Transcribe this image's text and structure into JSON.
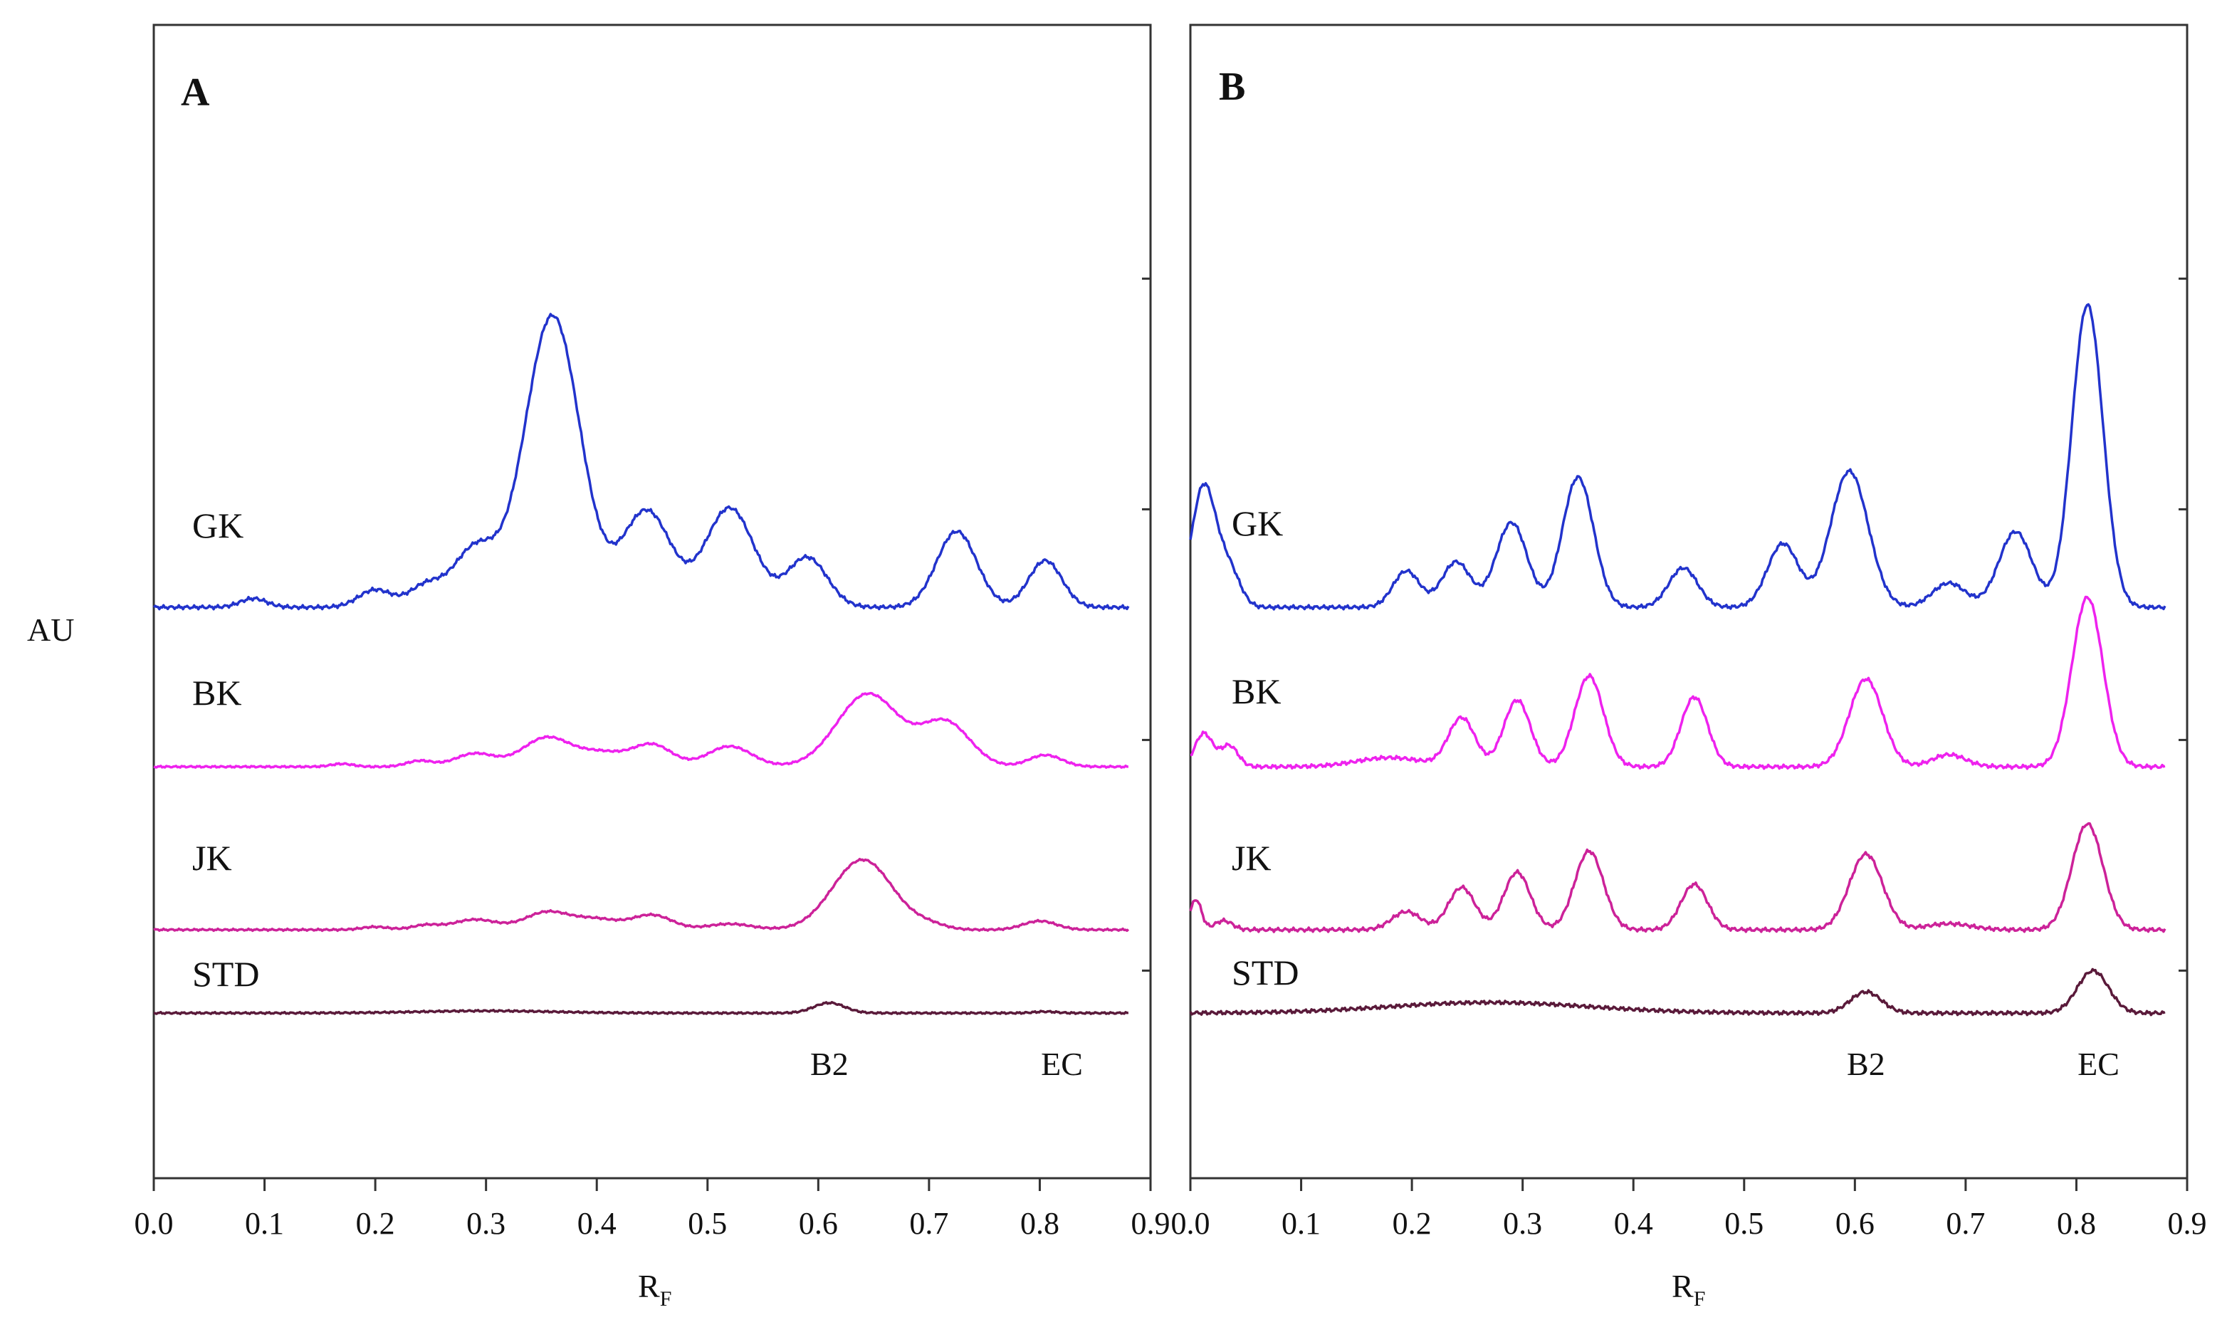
{
  "chart_data": {
    "type": "line",
    "ylabel": "AU",
    "xlabel_main": "R",
    "xlabel_sub": "F",
    "xlim": [
      0.0,
      0.9
    ],
    "x_ticks": [
      "0.0",
      "0.1",
      "0.2",
      "0.3",
      "0.4",
      "0.5",
      "0.6",
      "0.7",
      "0.8",
      "0.9"
    ],
    "colors": {
      "GK": "#2233cc",
      "BK": "#ee22ee",
      "JK": "#cc2299",
      "STD": "#5a1a3a"
    },
    "panels": [
      {
        "letter": "A",
        "peak_labels": [
          {
            "text": "B2",
            "x": 0.61
          },
          {
            "text": "EC",
            "x": 0.82
          }
        ],
        "traces": [
          {
            "name": "GK",
            "baseline": 0.0,
            "peaks": [
              [
                0.09,
                0.03,
                0.012
              ],
              [
                0.2,
                0.06,
                0.015
              ],
              [
                0.245,
                0.07,
                0.015
              ],
              [
                0.29,
                0.2,
                0.02
              ],
              [
                0.36,
                1.0,
                0.025
              ],
              [
                0.445,
                0.33,
                0.022
              ],
              [
                0.52,
                0.34,
                0.022
              ],
              [
                0.59,
                0.17,
                0.018
              ],
              [
                0.725,
                0.26,
                0.018
              ],
              [
                0.805,
                0.16,
                0.015
              ]
            ]
          },
          {
            "name": "BK",
            "baseline": 0.0,
            "peaks": [
              [
                0.17,
                0.02,
                0.01
              ],
              [
                0.24,
                0.04,
                0.012
              ],
              [
                0.29,
                0.09,
                0.018
              ],
              [
                0.355,
                0.2,
                0.022
              ],
              [
                0.405,
                0.09,
                0.02
              ],
              [
                0.45,
                0.15,
                0.018
              ],
              [
                0.52,
                0.14,
                0.02
              ],
              [
                0.645,
                0.5,
                0.028
              ],
              [
                0.715,
                0.3,
                0.022
              ],
              [
                0.805,
                0.08,
                0.015
              ]
            ]
          },
          {
            "name": "JK",
            "baseline": 0.0,
            "peaks": [
              [
                0.2,
                0.02,
                0.012
              ],
              [
                0.245,
                0.03,
                0.012
              ],
              [
                0.29,
                0.07,
                0.02
              ],
              [
                0.355,
                0.12,
                0.02
              ],
              [
                0.4,
                0.07,
                0.02
              ],
              [
                0.45,
                0.1,
                0.018
              ],
              [
                0.52,
                0.04,
                0.02
              ],
              [
                0.64,
                0.48,
                0.027
              ],
              [
                0.7,
                0.03,
                0.015
              ],
              [
                0.8,
                0.06,
                0.015
              ]
            ]
          },
          {
            "name": "STD",
            "baseline": 0.0,
            "peaks": [
              [
                0.3,
                0.015,
                0.06
              ],
              [
                0.61,
                0.07,
                0.014
              ],
              [
                0.805,
                0.01,
                0.01
              ]
            ]
          }
        ]
      },
      {
        "letter": "B",
        "peak_labels": [
          {
            "text": "B2",
            "x": 0.61
          },
          {
            "text": "EC",
            "x": 0.82
          }
        ],
        "traces": [
          {
            "name": "GK",
            "baseline": 0.0,
            "peaks": [
              [
                0.012,
                0.4,
                0.011
              ],
              [
                0.035,
                0.12,
                0.01
              ],
              [
                0.195,
                0.12,
                0.012
              ],
              [
                0.24,
                0.15,
                0.013
              ],
              [
                0.29,
                0.28,
                0.014
              ],
              [
                0.35,
                0.43,
                0.014
              ],
              [
                0.445,
                0.13,
                0.013
              ],
              [
                0.535,
                0.21,
                0.014
              ],
              [
                0.595,
                0.45,
                0.017
              ],
              [
                0.685,
                0.08,
                0.015
              ],
              [
                0.745,
                0.25,
                0.015
              ],
              [
                0.81,
                1.0,
                0.014
              ]
            ]
          },
          {
            "name": "BK",
            "baseline": 0.0,
            "peaks": [
              [
                0.012,
                0.11,
                0.008
              ],
              [
                0.035,
                0.07,
                0.008
              ],
              [
                0.18,
                0.03,
                0.03
              ],
              [
                0.245,
                0.16,
                0.012
              ],
              [
                0.295,
                0.22,
                0.012
              ],
              [
                0.36,
                0.3,
                0.013
              ],
              [
                0.455,
                0.23,
                0.012
              ],
              [
                0.61,
                0.29,
                0.015
              ],
              [
                0.685,
                0.04,
                0.015
              ],
              [
                0.81,
                0.56,
                0.014
              ]
            ]
          },
          {
            "name": "JK",
            "baseline": 0.0,
            "peaks": [
              [
                0.005,
                0.1,
                0.005
              ],
              [
                0.03,
                0.03,
                0.008
              ],
              [
                0.195,
                0.06,
                0.013
              ],
              [
                0.245,
                0.14,
                0.012
              ],
              [
                0.295,
                0.19,
                0.012
              ],
              [
                0.36,
                0.26,
                0.013
              ],
              [
                0.455,
                0.15,
                0.012
              ],
              [
                0.61,
                0.25,
                0.015
              ],
              [
                0.685,
                0.02,
                0.02
              ],
              [
                0.81,
                0.35,
                0.014
              ]
            ]
          },
          {
            "name": "STD",
            "baseline": 0.0,
            "peaks": [
              [
                0.27,
                0.035,
                0.09
              ],
              [
                0.61,
                0.07,
                0.014
              ],
              [
                0.815,
                0.14,
                0.014
              ]
            ]
          }
        ]
      }
    ]
  }
}
